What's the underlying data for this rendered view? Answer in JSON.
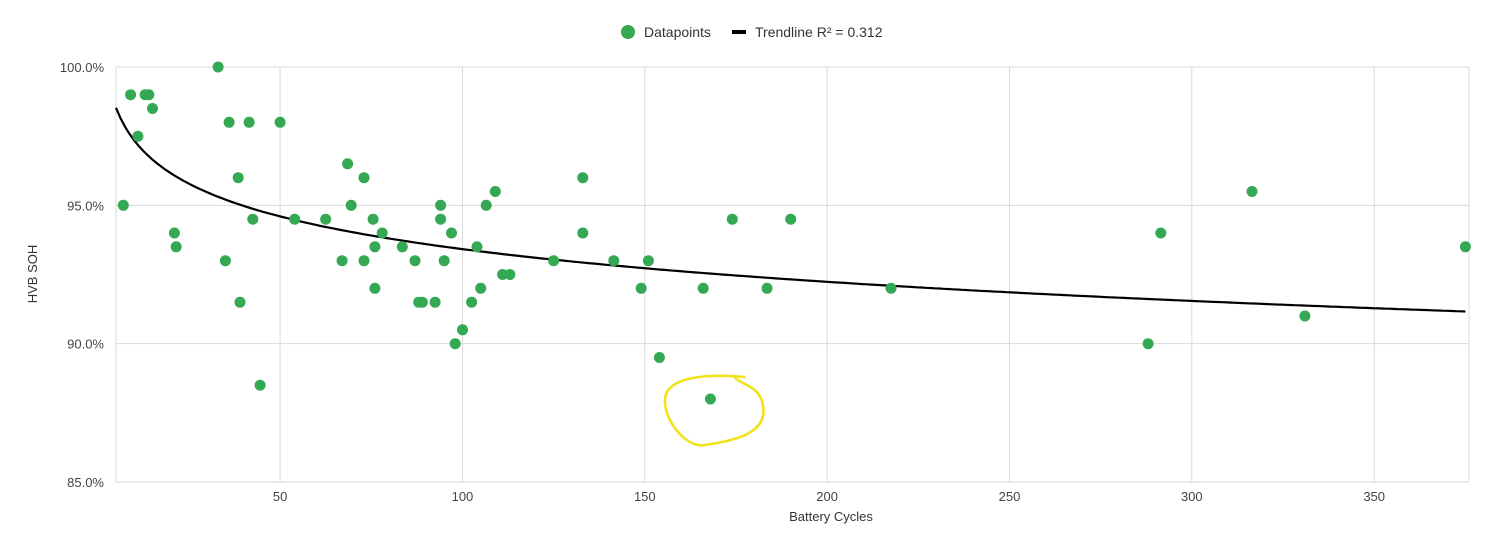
{
  "chart_data": {
    "type": "scatter",
    "xlabel": "Battery Cycles",
    "ylabel": "HVB SOH",
    "xlim": [
      5,
      376
    ],
    "ylim": [
      85,
      100
    ],
    "x_ticks": [
      50,
      100,
      150,
      200,
      250,
      300,
      350
    ],
    "y_ticks": [
      85,
      90,
      95,
      100
    ],
    "y_tick_labels": [
      "85.0%",
      "90.0%",
      "95.0%",
      "100.0%"
    ],
    "grid": true,
    "legend_position": "top-center",
    "legend": {
      "points_label": "Datapoints",
      "trend_label": "Trendline R² = 0.312"
    },
    "colors": {
      "points": "#34a853",
      "trendline": "#000000",
      "grid": "#d9d9d9",
      "highlight": "#f2e21c"
    },
    "series": [
      {
        "name": "Datapoints",
        "points": [
          [
            7,
            95
          ],
          [
            9,
            99
          ],
          [
            11,
            97.5
          ],
          [
            13,
            99
          ],
          [
            14,
            99
          ],
          [
            15,
            98.5
          ],
          [
            21,
            94
          ],
          [
            21.5,
            93.5
          ],
          [
            33,
            100
          ],
          [
            35,
            93
          ],
          [
            36,
            98
          ],
          [
            38.5,
            96
          ],
          [
            39,
            91.5
          ],
          [
            41.5,
            98
          ],
          [
            42.5,
            94.5
          ],
          [
            44.5,
            88.5
          ],
          [
            50,
            98
          ],
          [
            54,
            94.5
          ],
          [
            62.5,
            94.5
          ],
          [
            67,
            93
          ],
          [
            68.5,
            96.5
          ],
          [
            69.5,
            95
          ],
          [
            73,
            96
          ],
          [
            73,
            93
          ],
          [
            75.5,
            94.5
          ],
          [
            76,
            93.5
          ],
          [
            76,
            92
          ],
          [
            78,
            94
          ],
          [
            83.5,
            93.5
          ],
          [
            87,
            93
          ],
          [
            88,
            91.5
          ],
          [
            89,
            91.5
          ],
          [
            92.5,
            91.5
          ],
          [
            94,
            95
          ],
          [
            94,
            94.5
          ],
          [
            95,
            93
          ],
          [
            97,
            94
          ],
          [
            98,
            90
          ],
          [
            100,
            90.5
          ],
          [
            102.5,
            91.5
          ],
          [
            104,
            93.5
          ],
          [
            105,
            92
          ],
          [
            106.5,
            95
          ],
          [
            109,
            95.5
          ],
          [
            111,
            92.5
          ],
          [
            113,
            92.5
          ],
          [
            125,
            93
          ],
          [
            133,
            96
          ],
          [
            133,
            94
          ],
          [
            141.5,
            93
          ],
          [
            149,
            92
          ],
          [
            151,
            93
          ],
          [
            154,
            89.5
          ],
          [
            166,
            92
          ],
          [
            168,
            88
          ],
          [
            174,
            94.5
          ],
          [
            183.5,
            92
          ],
          [
            190,
            94.5
          ],
          [
            217.5,
            92
          ],
          [
            288,
            90
          ],
          [
            291.5,
            94
          ],
          [
            316.5,
            95.5
          ],
          [
            331,
            91
          ],
          [
            375,
            93.5
          ]
        ]
      }
    ],
    "trendline": {
      "type": "logarithmic",
      "a": 101.27,
      "b": -1.7051,
      "x_start": 5,
      "x_end": 375
    },
    "highlight_point": [
      168,
      88
    ]
  }
}
